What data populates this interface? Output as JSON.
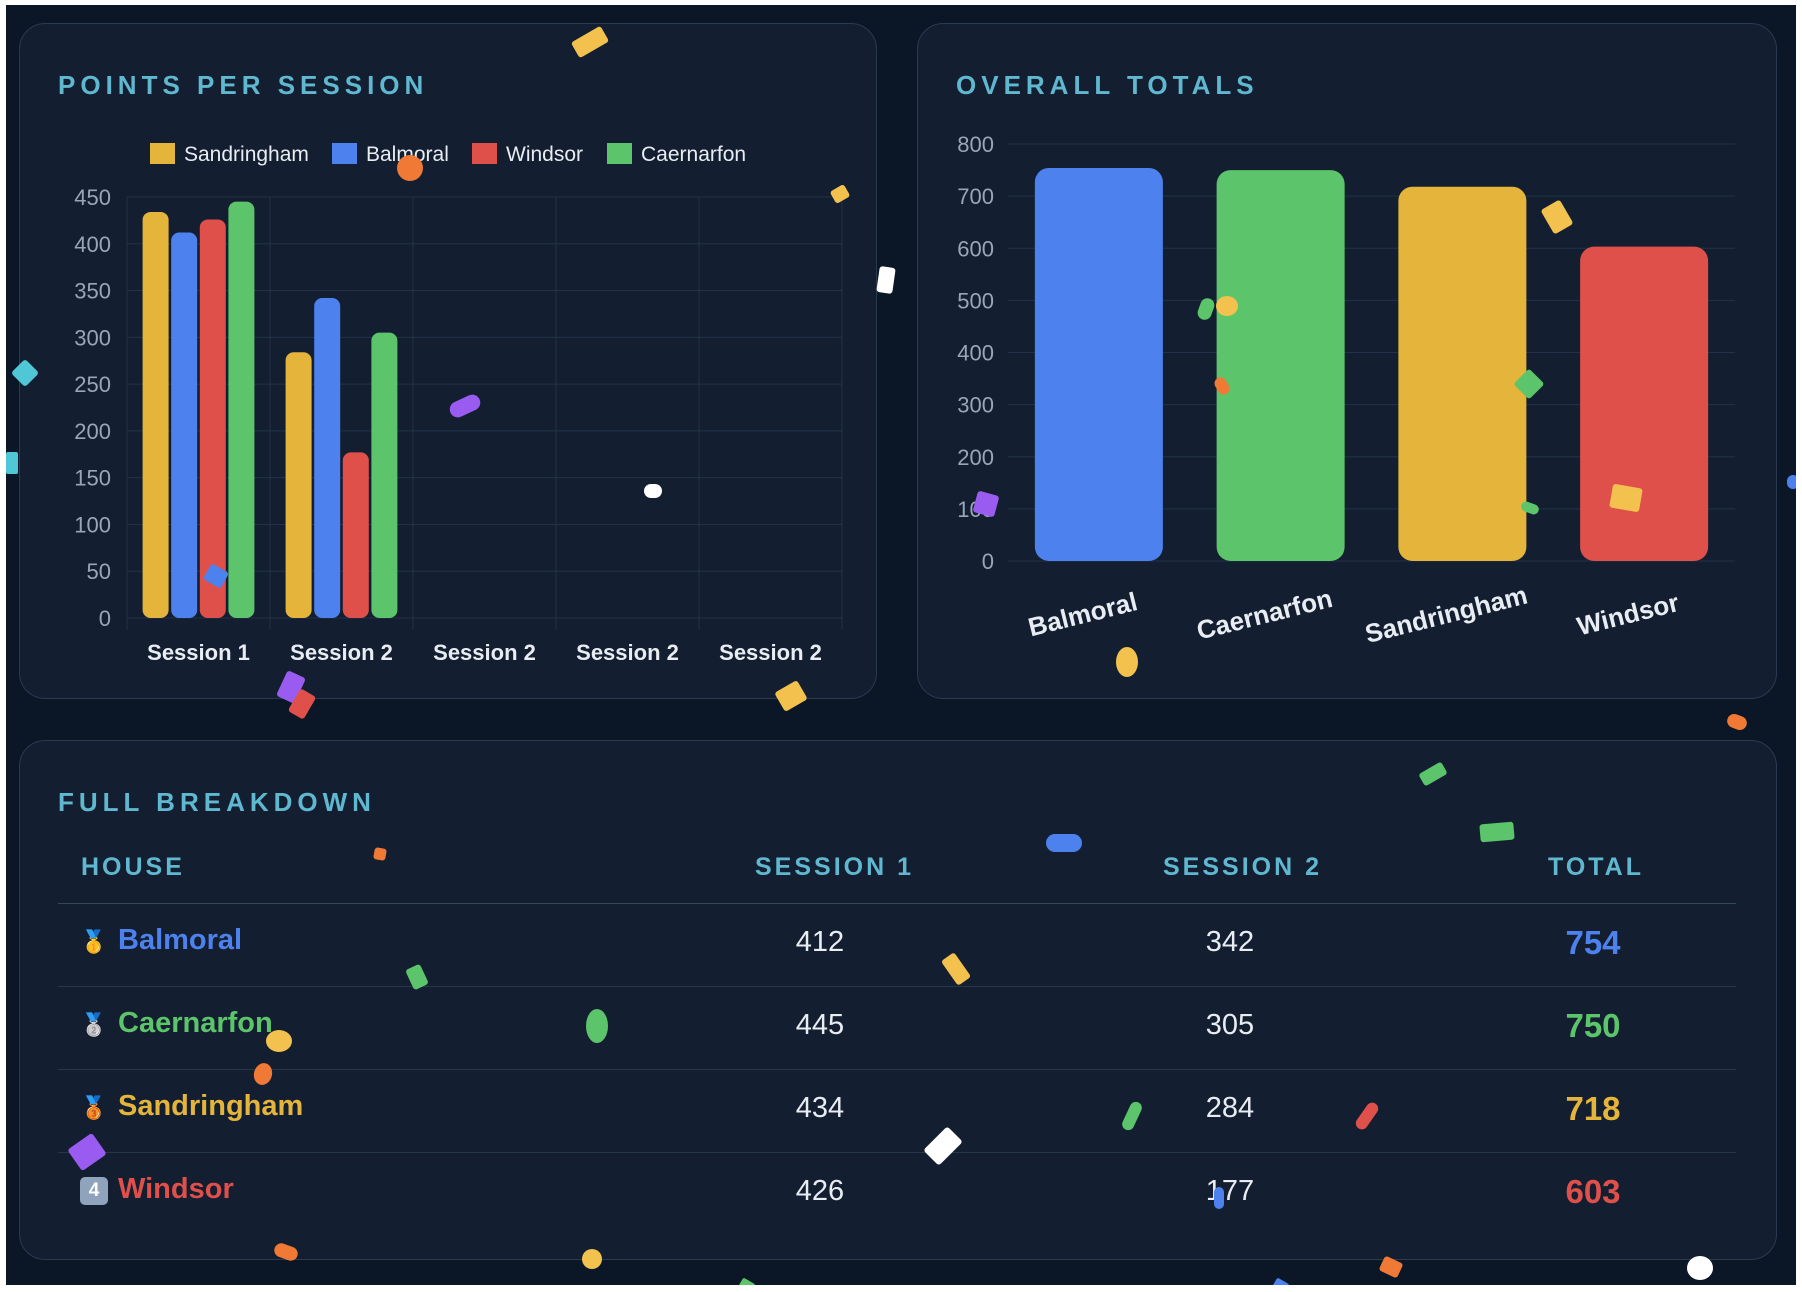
{
  "colors": {
    "Sandringham": "#e5b43a",
    "Balmoral": "#4d82ee",
    "Windsor": "#e0504a",
    "Caernarfon": "#5cc46a"
  },
  "panels": {
    "session_title": "POINTS PER SESSION",
    "totals_title": "OVERALL TOTALS",
    "breakdown_title": "FULL BREAKDOWN"
  },
  "chart_data": [
    {
      "type": "bar",
      "categories": [
        "Session 1",
        "Session 2",
        "Session 2",
        "Session 2",
        "Session 2"
      ],
      "series": [
        {
          "name": "Sandringham",
          "values": [
            434,
            284,
            null,
            null,
            null
          ]
        },
        {
          "name": "Balmoral",
          "values": [
            412,
            342,
            null,
            null,
            null
          ]
        },
        {
          "name": "Windsor",
          "values": [
            426,
            177,
            null,
            null,
            null
          ]
        },
        {
          "name": "Caernarfon",
          "values": [
            445,
            305,
            null,
            null,
            null
          ]
        }
      ],
      "ylim": [
        0,
        450
      ],
      "yticks": [
        0,
        50,
        100,
        150,
        200,
        250,
        300,
        350,
        400,
        450
      ],
      "legend": "top",
      "grid": true
    },
    {
      "type": "bar",
      "categories": [
        "Balmoral",
        "Caernarfon",
        "Sandringham",
        "Windsor"
      ],
      "values": [
        754,
        750,
        718,
        603
      ],
      "ylim": [
        0,
        800
      ],
      "yticks": [
        0,
        100,
        200,
        300,
        400,
        500,
        600,
        700,
        800
      ],
      "grid": true
    }
  ],
  "table": {
    "headers": {
      "house": "HOUSE",
      "s1": "SESSION 1",
      "s2": "SESSION 2",
      "total": "TOTAL"
    },
    "rows": [
      {
        "medal": "🥇",
        "house": "Balmoral",
        "s1": "412",
        "s2": "342",
        "total": "754"
      },
      {
        "medal": "🥈",
        "house": "Caernarfon",
        "s1": "445",
        "s2": "305",
        "total": "750"
      },
      {
        "medal": "🥉",
        "house": "Sandringham",
        "s1": "434",
        "s2": "284",
        "total": "718"
      },
      {
        "medal": "4",
        "house": "Windsor",
        "s1": "426",
        "s2": "177",
        "total": "603"
      }
    ]
  }
}
